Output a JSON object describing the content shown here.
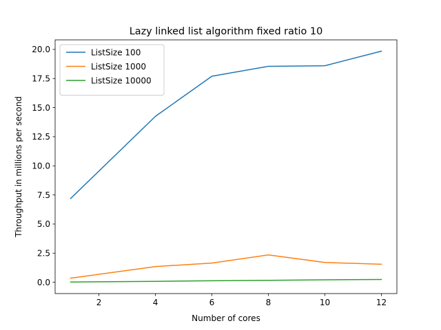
{
  "chart_data": {
    "type": "line",
    "title": "Lazy linked list algorithm fixed ratio 10",
    "xlabel": "Number of cores",
    "ylabel": "Throughput in millions per second",
    "x": [
      1,
      4,
      6,
      8,
      10,
      12
    ],
    "xlim": [
      0.45,
      12.55
    ],
    "ylim": [
      -0.97,
      20.82
    ],
    "xticks": [
      2,
      4,
      6,
      8,
      10,
      12
    ],
    "yticks": [
      0.0,
      2.5,
      5.0,
      7.5,
      10.0,
      12.5,
      15.0,
      17.5,
      20.0
    ],
    "ytick_labels": [
      "0.0",
      "2.5",
      "5.0",
      "7.5",
      "10.0",
      "12.5",
      "15.0",
      "17.5",
      "20.0"
    ],
    "grid": false,
    "legend_position": "top-left",
    "series": [
      {
        "name": "ListSize 100",
        "color": "#1f77b4",
        "values": [
          7.2,
          14.25,
          17.7,
          18.55,
          18.6,
          19.85
        ]
      },
      {
        "name": "ListSize 1000",
        "color": "#ff7f0e",
        "values": [
          0.35,
          1.35,
          1.65,
          2.35,
          1.7,
          1.55
        ]
      },
      {
        "name": "ListSize 10000",
        "color": "#2ca02c",
        "values": [
          0.02,
          0.08,
          0.13,
          0.17,
          0.21,
          0.24
        ]
      }
    ]
  }
}
